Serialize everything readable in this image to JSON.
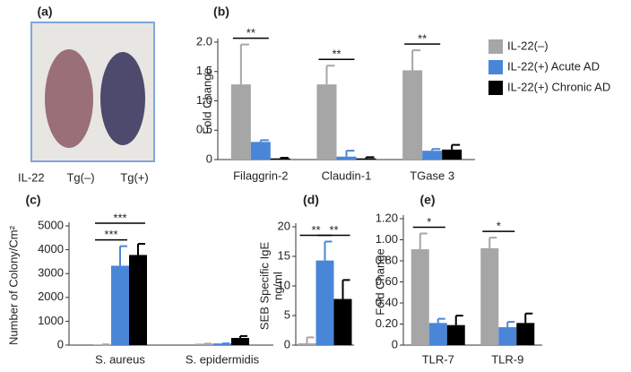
{
  "panel_a": {
    "label": "(a)",
    "row_label": "IL-22",
    "labels": [
      "Tg(–)",
      "Tg(+)"
    ]
  },
  "chart_data": [
    {
      "type": "bar",
      "label": "(b)",
      "ylabel": [
        "Fold Change"
      ],
      "categories": [
        "Filaggrin-2",
        "Claudin-1",
        "TGase 3"
      ],
      "series": [
        {
          "name": "IL-22(–)",
          "color": "#a6a6a6",
          "values": [
            1.28,
            1.28,
            1.52
          ],
          "errors": [
            0.68,
            0.32,
            0.34
          ]
        },
        {
          "name": "IL-22(+) Acute AD",
          "color": "#4a86d8",
          "values": [
            0.3,
            0.05,
            0.15
          ],
          "errors": [
            0.03,
            0.1,
            0.03
          ]
        },
        {
          "name": "IL-22(+) Chronic AD",
          "color": "#000000",
          "values": [
            0.02,
            0.02,
            0.17
          ],
          "errors": [
            0.01,
            0.02,
            0.08
          ]
        }
      ],
      "ylim": [
        0,
        2.0
      ],
      "yticks": [
        0,
        0.5,
        {
          "value": 1,
          "label": "1.0"
        },
        1.5,
        {
          "value": 2,
          "label": "2.0"
        }
      ],
      "annotations": [
        "**",
        "**",
        "**"
      ],
      "legend": "right"
    },
    {
      "type": "bar",
      "label": "(c)",
      "ylabel": [
        "Number of Colony/Cm²"
      ],
      "categories": [
        "S. aureus",
        "S. epidermidis"
      ],
      "series": [
        {
          "color": "#a6a6a6",
          "values": [
            30,
            60
          ],
          "errors": [
            0,
            0
          ]
        },
        {
          "color": "#4a86d8",
          "values": [
            3330,
            70
          ],
          "errors": [
            820,
            0
          ]
        },
        {
          "color": "#000000",
          "values": [
            3780,
            300
          ],
          "errors": [
            470,
            80
          ]
        }
      ],
      "ylim": [
        0,
        5000
      ],
      "yticks": [
        0,
        1000,
        2000,
        3000,
        4000,
        5000
      ],
      "annotations": [
        "***",
        "***"
      ]
    },
    {
      "type": "bar",
      "label": "(d)",
      "ylabel": [
        "SEB Specific IgE",
        "ng/ml"
      ],
      "categories": [
        null
      ],
      "series": [
        {
          "color": "#a6a6a6",
          "values": [
            0.3
          ],
          "errors": [
            1.0
          ]
        },
        {
          "color": "#4a86d8",
          "values": [
            14.3
          ],
          "errors": [
            3.2
          ]
        },
        {
          "color": "#000000",
          "values": [
            7.8
          ],
          "errors": [
            3.2
          ]
        }
      ],
      "ylim": [
        0,
        20
      ],
      "yticks": [
        0,
        5,
        10,
        15,
        20
      ],
      "annotations": [
        "**",
        "**"
      ]
    },
    {
      "type": "bar",
      "label": "(e)",
      "ylabel": [
        "Fold Change"
      ],
      "categories": [
        "TLR-7",
        "TLR-9"
      ],
      "series": [
        {
          "color": "#a6a6a6",
          "values": [
            0.91,
            0.92
          ],
          "errors": [
            0.15,
            0.1
          ]
        },
        {
          "color": "#4a86d8",
          "values": [
            0.21,
            0.17
          ],
          "errors": [
            0.04,
            0.05
          ]
        },
        {
          "color": "#000000",
          "values": [
            0.19,
            0.21
          ],
          "errors": [
            0.09,
            0.09
          ]
        }
      ],
      "ylim": [
        0,
        1.2
      ],
      "yticks": [
        0,
        {
          "value": 0.2,
          "label": "0.20"
        },
        {
          "value": 0.4,
          "label": "0.40"
        },
        {
          "value": 0.6,
          "label": "0.60"
        },
        {
          "value": 0.8,
          "label": "0.80"
        },
        {
          "value": 1,
          "label": "1.00"
        },
        {
          "value": 1.2,
          "label": "1.20"
        }
      ],
      "annotations": [
        "*",
        "*"
      ]
    }
  ]
}
